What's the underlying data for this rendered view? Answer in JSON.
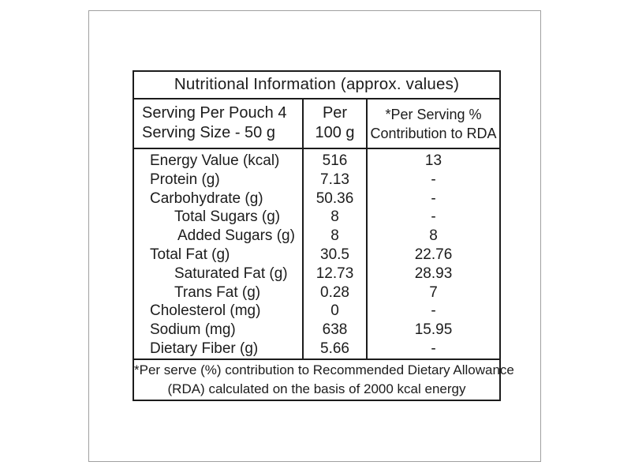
{
  "label": {
    "title": "Nutritional Information (approx. values)",
    "header": {
      "serving_per_pouch": "Serving Per Pouch 4",
      "serving_size": "Serving Size - 50 g",
      "per_line1": "Per",
      "per_line2": "100 g",
      "rda_line1": "*Per Serving %",
      "rda_line2": "Contribution to RDA"
    },
    "rows": [
      {
        "label": "Energy Value (kcal)",
        "per_100g": "516",
        "rda": "13"
      },
      {
        "label": "Protein (g)",
        "per_100g": "7.13",
        "rda": "-"
      },
      {
        "label": "Carbohydrate (g)",
        "per_100g": "50.36",
        "rda": "-"
      },
      {
        "label": "Total Sugars (g)",
        "per_100g": "8",
        "rda": "-"
      },
      {
        "label": "Added Sugars (g)",
        "per_100g": "8",
        "rda": "8"
      },
      {
        "label": "Total Fat (g)",
        "per_100g": "30.5",
        "rda": "22.76"
      },
      {
        "label": "Saturated Fat (g)",
        "per_100g": "12.73",
        "rda": "28.93"
      },
      {
        "label": "Trans Fat (g)",
        "per_100g": "0.28",
        "rda": "7"
      },
      {
        "label": "Cholesterol (mg)",
        "per_100g": "0",
        "rda": "-"
      },
      {
        "label": "Sodium (mg)",
        "per_100g": "638",
        "rda": "15.95"
      },
      {
        "label": "Dietary Fiber (g)",
        "per_100g": "5.66",
        "rda": "-"
      }
    ],
    "footnote_line1": "*Per serve (%) contribution to Recommended Dietary Allowance",
    "footnote_line2": "(RDA) calculated on the basis of 2000 kcal energy",
    "colors": {
      "table_border": "#1c1c1c",
      "frame_border": "#a0a0a0",
      "background": "#ffffff",
      "text": "#1c1c1c"
    }
  }
}
